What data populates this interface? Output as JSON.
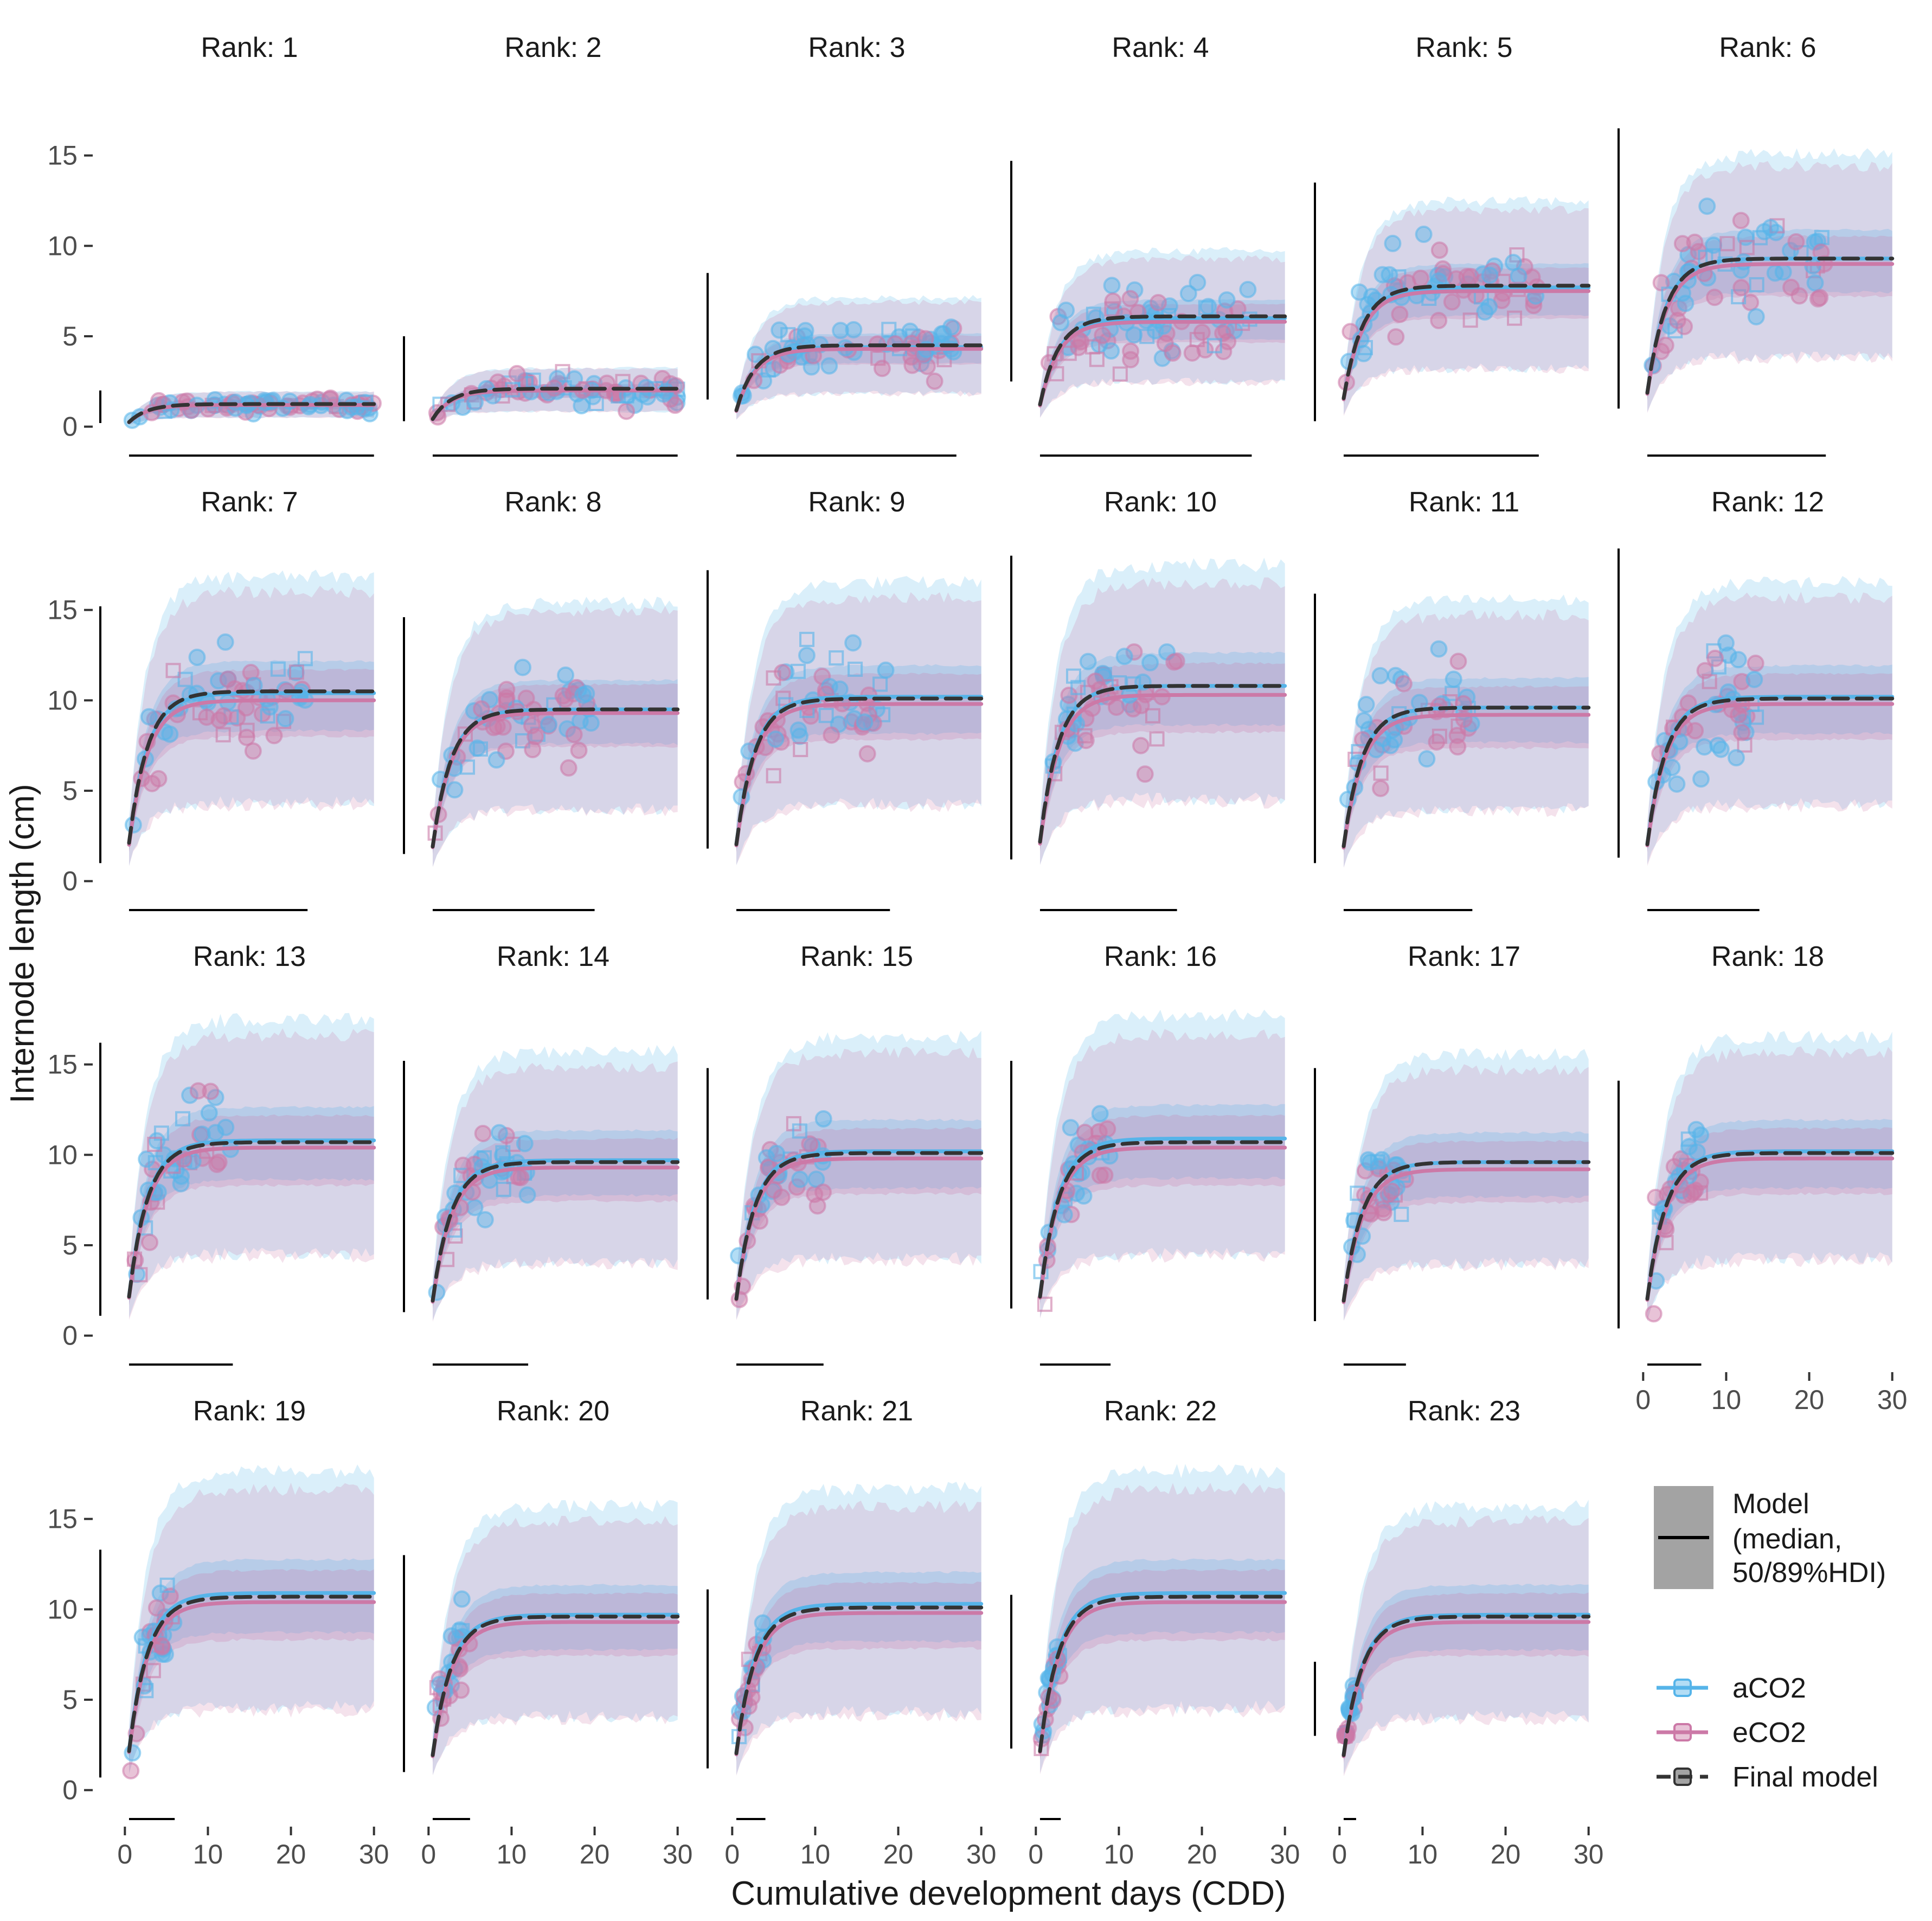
{
  "chart_data": {
    "type": "line",
    "facet_label_prefix": "Rank: ",
    "xlabel": "Cumulative development days (CDD)",
    "ylabel": "Internode length (cm)",
    "xlim": [
      0,
      30
    ],
    "ylim": [
      0,
      17
    ],
    "xticks": [
      0,
      10,
      20,
      30
    ],
    "yticks": [
      0,
      5,
      10,
      15
    ],
    "colors": {
      "aCO2": "#56B4E9",
      "eCO2": "#CC79A7",
      "final": "#333333"
    },
    "legend": {
      "model_title": "Model",
      "model_desc_lines": [
        "(median,",
        "50/89%HDI)"
      ],
      "series_labels": [
        "aCO2",
        "eCO2",
        "Final model"
      ]
    },
    "panels": [
      {
        "rank": 1,
        "aCO2_plateau": 1.2,
        "eCO2_plateau": 1.2,
        "final_plateau": 1.25,
        "k": 0.45,
        "obs_cdd_max": 30,
        "obs_min": 0.2,
        "obs_max": 2.0
      },
      {
        "rank": 2,
        "aCO2_plateau": 2.0,
        "eCO2_plateau": 2.0,
        "final_plateau": 2.1,
        "k": 0.45,
        "obs_cdd_max": 30,
        "obs_min": 0.3,
        "obs_max": 5.0
      },
      {
        "rank": 3,
        "aCO2_plateau": 4.4,
        "eCO2_plateau": 4.3,
        "final_plateau": 4.5,
        "k": 0.45,
        "obs_cdd_max": 27,
        "obs_min": 1.5,
        "obs_max": 8.5
      },
      {
        "rank": 4,
        "aCO2_plateau": 6.0,
        "eCO2_plateau": 5.8,
        "final_plateau": 6.1,
        "k": 0.45,
        "obs_cdd_max": 26,
        "obs_min": 2.5,
        "obs_max": 14.7
      },
      {
        "rank": 5,
        "aCO2_plateau": 7.7,
        "eCO2_plateau": 7.5,
        "final_plateau": 7.8,
        "k": 0.45,
        "obs_cdd_max": 24,
        "obs_min": 0.3,
        "obs_max": 13.5
      },
      {
        "rank": 6,
        "aCO2_plateau": 9.3,
        "eCO2_plateau": 9.0,
        "final_plateau": 9.3,
        "k": 0.45,
        "obs_cdd_max": 22,
        "obs_min": 1.0,
        "obs_max": 16.5
      },
      {
        "rank": 7,
        "aCO2_plateau": 10.4,
        "eCO2_plateau": 10.0,
        "final_plateau": 10.5,
        "k": 0.45,
        "obs_cdd_max": 22,
        "obs_min": 1.0,
        "obs_max": 15.2
      },
      {
        "rank": 8,
        "aCO2_plateau": 9.5,
        "eCO2_plateau": 9.3,
        "final_plateau": 9.5,
        "k": 0.45,
        "obs_cdd_max": 20,
        "obs_min": 1.5,
        "obs_max": 14.6
      },
      {
        "rank": 9,
        "aCO2_plateau": 10.2,
        "eCO2_plateau": 9.8,
        "final_plateau": 10.1,
        "k": 0.45,
        "obs_cdd_max": 19,
        "obs_min": 1.8,
        "obs_max": 17.2
      },
      {
        "rank": 10,
        "aCO2_plateau": 10.8,
        "eCO2_plateau": 10.3,
        "final_plateau": 10.8,
        "k": 0.45,
        "obs_cdd_max": 17,
        "obs_min": 1.2,
        "obs_max": 18.0
      },
      {
        "rank": 11,
        "aCO2_plateau": 9.6,
        "eCO2_plateau": 9.2,
        "final_plateau": 9.6,
        "k": 0.45,
        "obs_cdd_max": 16,
        "obs_min": 1.0,
        "obs_max": 15.9
      },
      {
        "rank": 12,
        "aCO2_plateau": 10.2,
        "eCO2_plateau": 9.8,
        "final_plateau": 10.1,
        "k": 0.45,
        "obs_cdd_max": 14,
        "obs_min": 1.3,
        "obs_max": 18.4
      },
      {
        "rank": 13,
        "aCO2_plateau": 10.8,
        "eCO2_plateau": 10.4,
        "final_plateau": 10.7,
        "k": 0.45,
        "obs_cdd_max": 13,
        "obs_min": 1.1,
        "obs_max": 16.2
      },
      {
        "rank": 14,
        "aCO2_plateau": 9.7,
        "eCO2_plateau": 9.3,
        "final_plateau": 9.6,
        "k": 0.45,
        "obs_cdd_max": 12,
        "obs_min": 1.3,
        "obs_max": 15.2
      },
      {
        "rank": 15,
        "aCO2_plateau": 10.2,
        "eCO2_plateau": 9.8,
        "final_plateau": 10.1,
        "k": 0.45,
        "obs_cdd_max": 11,
        "obs_min": 2.0,
        "obs_max": 14.8
      },
      {
        "rank": 16,
        "aCO2_plateau": 10.9,
        "eCO2_plateau": 10.4,
        "final_plateau": 10.7,
        "k": 0.45,
        "obs_cdd_max": 9,
        "obs_min": 1.5,
        "obs_max": 15.2
      },
      {
        "rank": 17,
        "aCO2_plateau": 9.6,
        "eCO2_plateau": 9.2,
        "final_plateau": 9.6,
        "k": 0.45,
        "obs_cdd_max": 8,
        "obs_min": 0.8,
        "obs_max": 14.8
      },
      {
        "rank": 18,
        "aCO2_plateau": 10.2,
        "eCO2_plateau": 9.8,
        "final_plateau": 10.1,
        "k": 0.45,
        "obs_cdd_max": 7,
        "obs_min": 0.4,
        "obs_max": 14.1
      },
      {
        "rank": 19,
        "aCO2_plateau": 10.9,
        "eCO2_plateau": 10.4,
        "final_plateau": 10.7,
        "k": 0.45,
        "obs_cdd_max": 6,
        "obs_min": 0.7,
        "obs_max": 13.3
      },
      {
        "rank": 20,
        "aCO2_plateau": 9.7,
        "eCO2_plateau": 9.3,
        "final_plateau": 9.6,
        "k": 0.45,
        "obs_cdd_max": 5,
        "obs_min": 1.0,
        "obs_max": 13.0
      },
      {
        "rank": 21,
        "aCO2_plateau": 10.3,
        "eCO2_plateau": 9.8,
        "final_plateau": 10.1,
        "k": 0.45,
        "obs_cdd_max": 4,
        "obs_min": 1.2,
        "obs_max": 11.1
      },
      {
        "rank": 22,
        "aCO2_plateau": 10.9,
        "eCO2_plateau": 10.4,
        "final_plateau": 10.7,
        "k": 0.45,
        "obs_cdd_max": 3,
        "obs_min": 2.3,
        "obs_max": 10.8
      },
      {
        "rank": 23,
        "aCO2_plateau": 9.7,
        "eCO2_plateau": 9.3,
        "final_plateau": 9.6,
        "k": 0.45,
        "obs_cdd_max": 2,
        "obs_min": 3.0,
        "obs_max": 7.1
      }
    ]
  }
}
